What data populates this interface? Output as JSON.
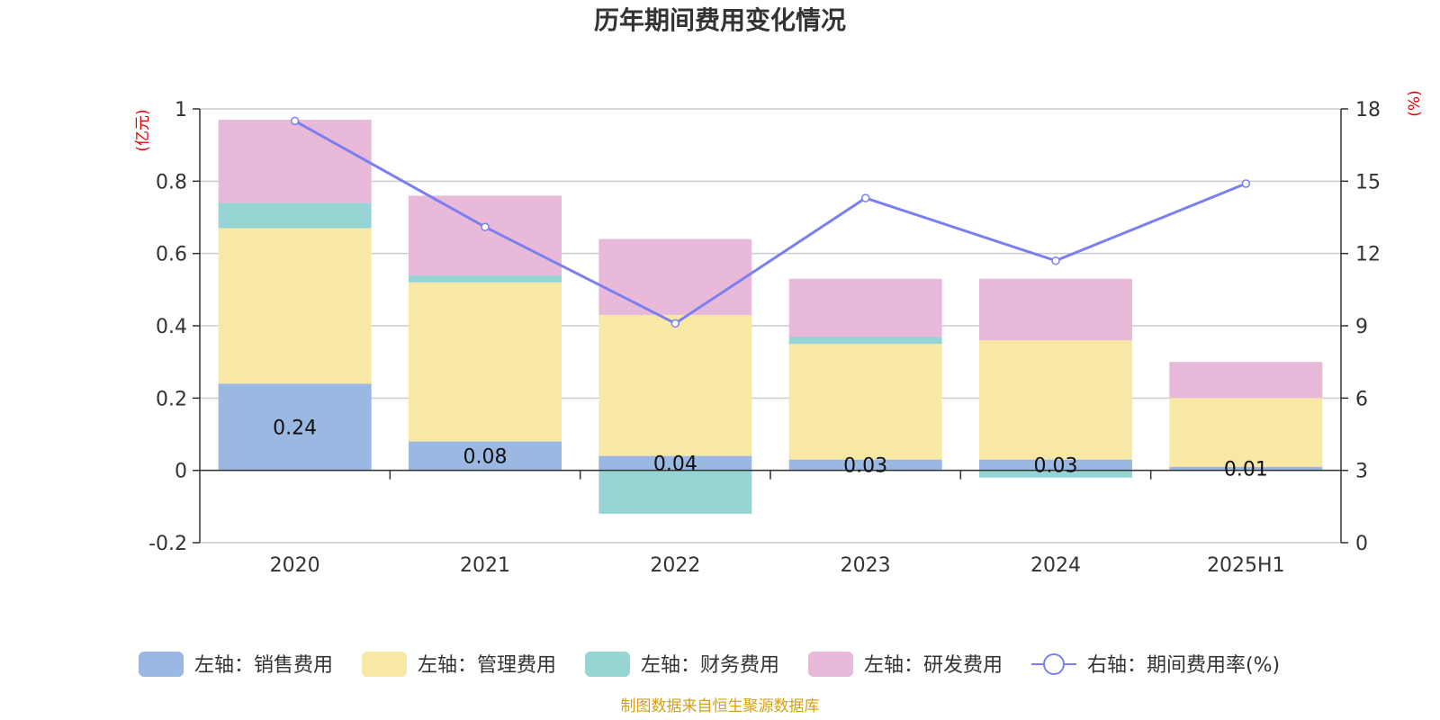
{
  "chart_data": {
    "type": "bar",
    "title": "历年期间费用变化情况",
    "categories": [
      "2020",
      "2021",
      "2022",
      "2023",
      "2024",
      "2025H1"
    ],
    "y_left": {
      "unit": "(亿元)",
      "range": [
        -0.2,
        1
      ],
      "ticks": [
        -0.2,
        0,
        0.2,
        0.4,
        0.6,
        0.8,
        1
      ]
    },
    "y_right": {
      "unit": "(%)",
      "range": [
        0,
        18
      ],
      "ticks": [
        0,
        3,
        6,
        9,
        12,
        15,
        18
      ]
    },
    "grid": true,
    "legend_position": "bottom",
    "series": [
      {
        "name": "左轴：销售费用",
        "type": "bar",
        "stack": true,
        "axis": "left",
        "color": "#9bb8e3",
        "values": [
          0.24,
          0.08,
          0.04,
          0.03,
          0.03,
          0.01
        ],
        "show_labels": true
      },
      {
        "name": "左轴：管理费用",
        "type": "bar",
        "stack": true,
        "axis": "left",
        "color": "#f8e8a6",
        "values": [
          0.43,
          0.44,
          0.39,
          0.32,
          0.33,
          0.19
        ]
      },
      {
        "name": "左轴：财务费用",
        "type": "bar",
        "stack": true,
        "axis": "left",
        "color": "#97d4d4",
        "values": [
          0.07,
          0.02,
          -0.12,
          0.02,
          -0.02,
          0.0
        ]
      },
      {
        "name": "左轴：研发费用",
        "type": "bar",
        "stack": true,
        "axis": "left",
        "color": "#e8b9d9",
        "values": [
          0.23,
          0.22,
          0.21,
          0.16,
          0.17,
          0.1
        ]
      },
      {
        "name": "右轴：期间费用率(%)",
        "type": "line",
        "axis": "right",
        "color": "#7b7ff0",
        "values": [
          17.5,
          13.1,
          9.1,
          14.3,
          11.7,
          14.9
        ]
      }
    ],
    "source": "制图数据来自恒生聚源数据库"
  }
}
